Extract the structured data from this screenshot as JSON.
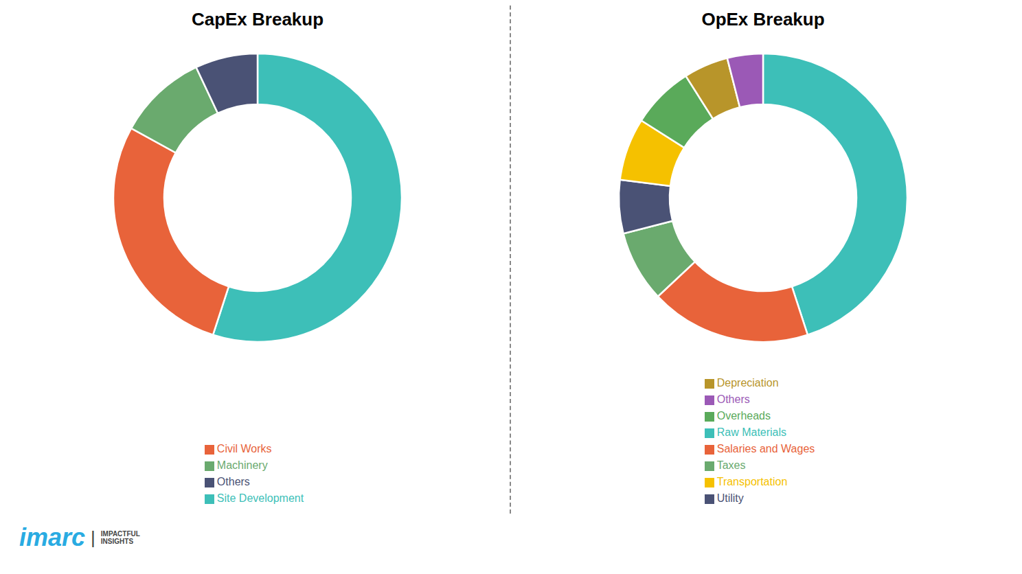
{
  "chart_data": [
    {
      "type": "pie",
      "title": "CapEx Breakup",
      "categories": [
        "Site Development",
        "Civil Works",
        "Machinery",
        "Others"
      ],
      "values": [
        55,
        28,
        10,
        7
      ],
      "colors": [
        "#3dbfb8",
        "#e8633a",
        "#6aaa6e",
        "#4a5275"
      ],
      "legend": "bottom",
      "annotations": [
        "imarc",
        "|",
        "IMPACTFUL\nINSIGHTS"
      ]
    },
    {
      "type": "pie",
      "title": "OpEx Breakup",
      "categories": [
        "Raw Materials",
        "Salaries and Wages",
        "Taxes",
        "Utility",
        "Transportation",
        "Overheads",
        "Depreciation",
        "Others"
      ],
      "values": [
        45,
        18,
        8,
        6,
        7,
        7,
        5,
        4
      ],
      "colors": [
        "#3dbfb8",
        "#e8633a",
        "#6aaa6e",
        "#4a5275",
        "#f5c100",
        "#5aaa5a",
        "#b8952a",
        "#9b59b6"
      ],
      "legend": "bottom"
    }
  ]
}
